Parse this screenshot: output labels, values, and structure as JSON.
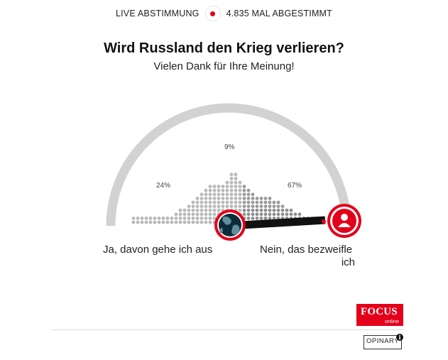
{
  "header": {
    "live_label": "LIVE ABSTIMMUNG",
    "votes_label": "4.835 MAL ABGESTIMMT"
  },
  "poll": {
    "question": "Wird Russland den Krieg verlieren?",
    "thanks": "Vielen Dank für Ihre Meinung!",
    "left_answer": "Ja, davon gehe ich aus",
    "right_answer_line1": "Nein, das bezweifle",
    "right_answer_line2": "ich",
    "results": [
      {
        "label": "24%",
        "value": 24
      },
      {
        "label": "9%",
        "value": 9
      },
      {
        "label": "67%",
        "value": 67
      }
    ],
    "needle_level": 0.97
  },
  "brand": {
    "focus_main": "FOCUS",
    "focus_sub": "online",
    "opinary": "OPINARY",
    "info_glyph": "i",
    "accent": "#e2001a"
  },
  "icons": [
    "globe-icon",
    "user-icon",
    "info-icon"
  ]
}
